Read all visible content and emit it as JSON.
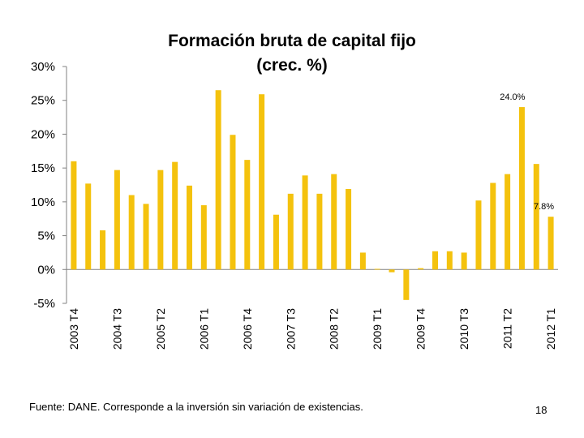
{
  "title_line1": "Formación bruta de capital fijo",
  "title_line2": "(crec. %)",
  "footer": {
    "source": "Fuente: DANE. Corresponde a la inversión sin variación de existencias.",
    "page": "18"
  },
  "colors": {
    "bar": "#f4c20d",
    "axis": "#808080"
  },
  "chart_data": {
    "type": "bar",
    "title": "Formación bruta de capital fijo (crec. %)",
    "categories": [
      "2003 T4",
      "2004 T1",
      "2004 T2",
      "2004 T3",
      "2004 T4",
      "2005 T1",
      "2005 T2",
      "2005 T3",
      "2005 T4",
      "2006 T1",
      "2006 T2",
      "2006 T3",
      "2006 T4",
      "2007 T1",
      "2007 T2",
      "2007 T3",
      "2007 T4",
      "2008 T1",
      "2008 T2",
      "2008 T3",
      "2008 T4",
      "2009 T1",
      "2009 T2",
      "2009 T3",
      "2009 T4",
      "2010 T1",
      "2010 T2",
      "2010 T3",
      "2010 T4",
      "2011 T1",
      "2011 T2",
      "2011 T3",
      "2011 T4",
      "2012 T1"
    ],
    "tick_labels": [
      "2003 T4",
      "2004 T3",
      "2005 T2",
      "2006 T1",
      "2006 T4",
      "2007 T3",
      "2008 T2",
      "2009 T1",
      "2009 T4",
      "2010 T3",
      "2011 T2",
      "2012 T1"
    ],
    "tick_label_every": 3,
    "values": [
      16.0,
      12.7,
      5.8,
      14.7,
      11.0,
      9.7,
      14.7,
      15.9,
      12.4,
      9.5,
      26.5,
      19.9,
      16.2,
      25.9,
      8.1,
      11.2,
      13.9,
      11.2,
      14.1,
      11.9,
      2.5,
      0.1,
      -0.4,
      -4.5,
      0.2,
      2.7,
      2.7,
      2.5,
      10.2,
      12.8,
      14.1,
      24.0,
      15.6,
      7.8
    ],
    "data_labels": [
      {
        "index": 31,
        "text": "24.0%"
      },
      {
        "index": 33,
        "text": "7.8%"
      }
    ],
    "ylim": [
      -5,
      30
    ],
    "yticks": [
      -5,
      0,
      5,
      10,
      15,
      20,
      25,
      30
    ],
    "ytick_labels": [
      "-5%",
      "0%",
      "5%",
      "10%",
      "15%",
      "20%",
      "25%",
      "30%"
    ],
    "grid": false
  }
}
